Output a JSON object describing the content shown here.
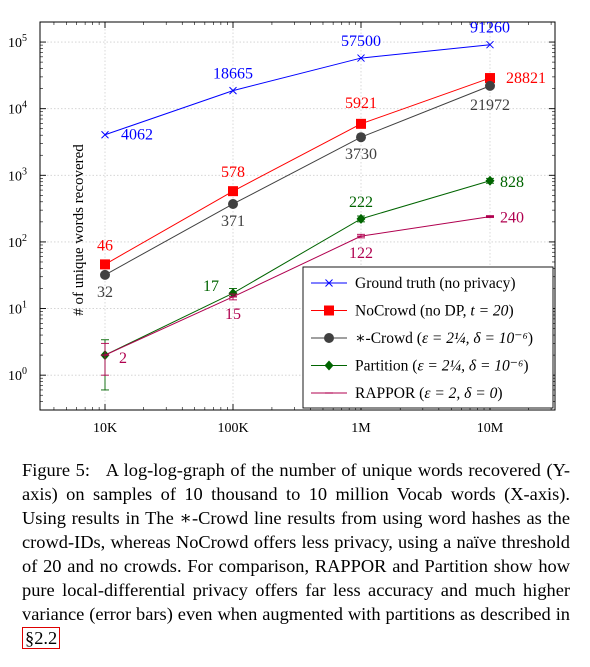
{
  "chart_data": {
    "type": "line",
    "scale": "log-log",
    "grid": true,
    "legend_position": "bottom-right",
    "x": [
      10000,
      100000,
      1000000,
      10000000
    ],
    "x_tick_labels": [
      "10K",
      "100K",
      "1M",
      "10M"
    ],
    "ylabel": "# of unique words recovered",
    "y_ticks": [
      1,
      10,
      100,
      1000,
      10000,
      100000
    ],
    "ylim": [
      0.3,
      200000
    ],
    "series": [
      {
        "key": "ground_truth",
        "name": "Ground truth (no privacy)",
        "color": "#0000ff",
        "marker": "x",
        "values": [
          4062,
          18665,
          57500,
          91260
        ],
        "labels": [
          "4062",
          "18665",
          "57500",
          "91260"
        ]
      },
      {
        "key": "nocrowd",
        "name_prefix": "NoCrowd (no DP, ",
        "name_math": "t = 20",
        "name_suffix": ")",
        "color": "#ff0000",
        "marker": "square",
        "values": [
          46,
          578,
          5921,
          28821
        ],
        "labels": [
          "46",
          "578",
          "5921",
          "28821"
        ]
      },
      {
        "key": "crowd",
        "name_prefix": "∗-Crowd (",
        "name_math": "ε = 2¼, δ = 10⁻⁶",
        "name_suffix": ")",
        "color": "#404040",
        "marker": "circle",
        "values": [
          32,
          371,
          3730,
          21972
        ],
        "labels": [
          "32",
          "371",
          "3730",
          "21972"
        ]
      },
      {
        "key": "partition",
        "name_prefix": "Partition (",
        "name_math": "ε = 2¼, δ = 10⁻⁶",
        "name_suffix": ")",
        "color": "#006400",
        "marker": "diamond",
        "values": [
          2,
          17,
          222,
          828
        ],
        "error_low": [
          0.6,
          15,
          200,
          760
        ],
        "error_high": [
          3.4,
          20,
          245,
          900
        ],
        "labels": [
          "",
          "17",
          "222",
          "828"
        ]
      },
      {
        "key": "rappor",
        "name_prefix": "RAPPOR (",
        "name_math": "ε = 2, δ = 0",
        "name_suffix": ")",
        "color": "#b0004f",
        "marker": "dash",
        "values": [
          2,
          15,
          122,
          240
        ],
        "error_low": [
          1.0,
          13.5,
          115,
          232
        ],
        "error_high": [
          3.0,
          16.5,
          130,
          248
        ],
        "labels": [
          "2",
          "15",
          "122",
          "240"
        ]
      }
    ]
  },
  "caption": {
    "figure_label": "Figure 5:",
    "text": "A log-log-graph of the number of unique words recovered (Y-axis) on samples of 10 thousand to 10 million Vocab words (X-axis). Using results in The ∗-Crowd line results from using word hashes as the crowd-IDs, whereas NoCrowd offers less privacy, using a naïve threshold of 20 and no crowds. For comparison, RAPPOR and Partition show how pure local-differential privacy offers far less accuracy and much higher variance (error bars) even when augmented with partitions as described in",
    "ref_section": "§",
    "ref": "2.2"
  }
}
